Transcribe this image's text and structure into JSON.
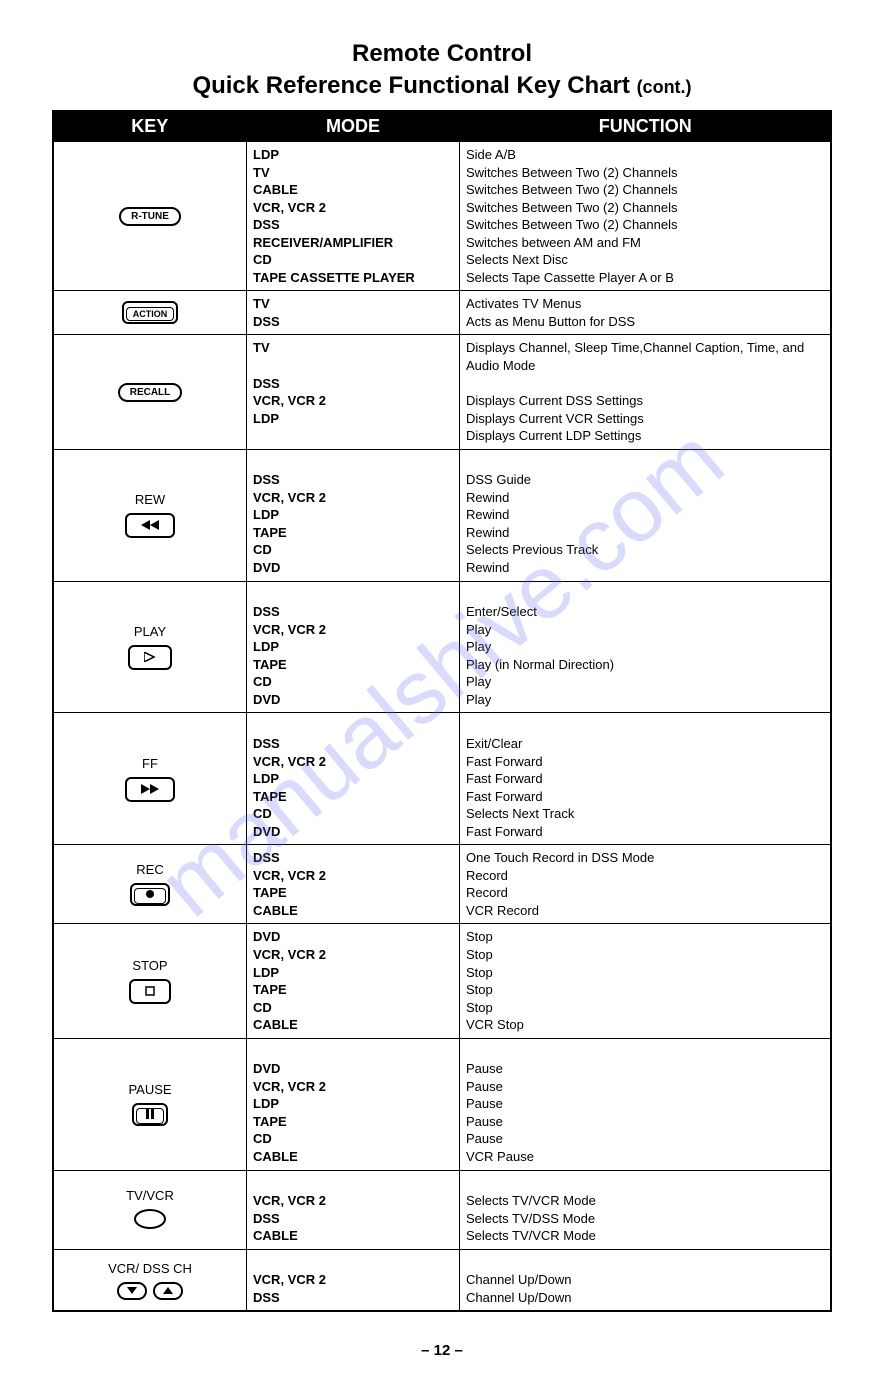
{
  "title": {
    "line1": "Remote Control",
    "line2_main": "Quick Reference Functional Key Chart",
    "line2_suffix": "(cont.)"
  },
  "watermark": "manualshive.com",
  "page_number": "– 12 –",
  "headers": {
    "key": "KEY",
    "mode": "MODE",
    "function": "FUNCTION"
  },
  "colors": {
    "header_bg": "#000000",
    "header_fg": "#ffffff",
    "border": "#000000",
    "text": "#000000",
    "watermark": "rgba(100,110,240,0.25)"
  },
  "rows": [
    {
      "key_label": "",
      "key_icon": "r-tune",
      "modes": [
        "LDP",
        "TV",
        "CABLE",
        "VCR, VCR 2",
        "DSS",
        "RECEIVER/AMPLIFIER",
        "CD",
        "TAPE CASSETTE PLAYER"
      ],
      "functions": [
        "Side A/B",
        "Switches Between Two (2) Channels",
        "Switches Between Two (2) Channels",
        "Switches Between Two (2) Channels",
        "Switches Between Two (2) Channels",
        "Switches between AM and FM",
        "Selects Next Disc",
        "Selects Tape Cassette Player A or B"
      ]
    },
    {
      "key_label": "",
      "key_icon": "action",
      "modes": [
        "TV",
        "DSS"
      ],
      "functions": [
        "Activates TV Menus",
        "Acts as Menu Button for DSS"
      ]
    },
    {
      "key_label": "",
      "key_icon": "recall",
      "modes": [
        "TV",
        "",
        "DSS",
        "VCR, VCR 2",
        "LDP"
      ],
      "functions": [
        "Displays Channel, Sleep Time,Channel Caption, Time, and Audio Mode",
        "",
        "Displays Current DSS Settings",
        "Displays Current VCR Settings",
        "Displays Current LDP Settings"
      ]
    },
    {
      "key_label": "REW",
      "key_icon": "rew",
      "modes": [
        "",
        "DSS",
        "VCR, VCR 2",
        "LDP",
        "TAPE",
        "CD",
        "DVD"
      ],
      "functions": [
        "",
        "DSS Guide",
        "Rewind",
        "Rewind",
        "Rewind",
        "Selects Previous Track",
        "Rewind"
      ]
    },
    {
      "key_label": "PLAY",
      "key_icon": "play",
      "modes": [
        "",
        "DSS",
        "VCR, VCR 2",
        "LDP",
        "TAPE",
        "CD",
        "DVD"
      ],
      "functions": [
        "",
        "Enter/Select",
        "Play",
        "Play",
        "Play (in Normal Direction)",
        "Play",
        "Play"
      ]
    },
    {
      "key_label": "FF",
      "key_icon": "ff",
      "modes": [
        "",
        "DSS",
        "VCR, VCR 2",
        "LDP",
        "TAPE",
        "CD",
        "DVD"
      ],
      "functions": [
        "",
        "Exit/Clear",
        "Fast Forward",
        "Fast Forward",
        "Fast Forward",
        "Selects Next Track",
        "Fast Forward"
      ]
    },
    {
      "key_label": "REC",
      "key_icon": "rec",
      "modes": [
        "DSS",
        "VCR, VCR 2",
        "TAPE",
        "CABLE"
      ],
      "functions": [
        "One Touch Record in DSS Mode",
        "Record",
        "Record",
        "VCR Record"
      ]
    },
    {
      "key_label": "STOP",
      "key_icon": "stop",
      "modes": [
        "DVD",
        "VCR, VCR 2",
        "LDP",
        "TAPE",
        "CD",
        "CABLE"
      ],
      "functions": [
        "Stop",
        "Stop",
        "Stop",
        "Stop",
        "Stop",
        "VCR Stop"
      ]
    },
    {
      "key_label": "PAUSE",
      "key_icon": "pause",
      "modes": [
        "",
        "DVD",
        "VCR, VCR 2",
        "LDP",
        "TAPE",
        "CD",
        "CABLE"
      ],
      "functions": [
        "",
        "Pause",
        "Pause",
        "Pause",
        "Pause",
        "Pause",
        "VCR Pause"
      ]
    },
    {
      "key_label": "TV/VCR",
      "key_icon": "oval",
      "modes": [
        "",
        "VCR, VCR 2",
        "DSS",
        "CABLE"
      ],
      "functions": [
        "",
        "Selects TV/VCR Mode",
        "Selects TV/DSS Mode",
        "Selects TV/VCR Mode"
      ]
    },
    {
      "key_label": "VCR/ DSS CH",
      "key_icon": "updown",
      "modes": [
        "",
        "VCR, VCR 2",
        "DSS"
      ],
      "functions": [
        "",
        "Channel Up/Down",
        "Channel Up/Down"
      ]
    }
  ],
  "icons": {
    "r-tune": "R-TUNE",
    "action": "ACTION",
    "recall": "RECALL"
  }
}
